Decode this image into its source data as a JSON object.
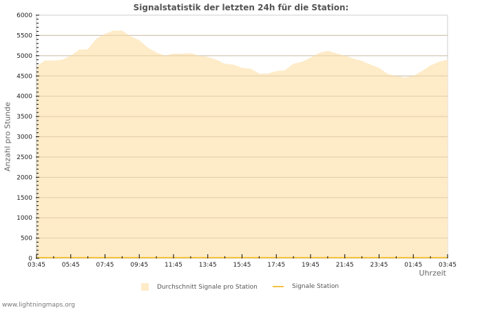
{
  "chart_data": {
    "type": "area",
    "title": "Signalstatistik der letzten 24h für die Station:",
    "xlabel": "Uhrzeit",
    "ylabel": "Anzahl pro Stunde",
    "ylim": [
      0,
      6000
    ],
    "yticks": [
      0,
      500,
      1000,
      1500,
      2000,
      2500,
      3000,
      3500,
      4000,
      4500,
      5000,
      5500,
      6000
    ],
    "xtick_labels": [
      "03:45",
      "05:45",
      "07:45",
      "09:45",
      "11:45",
      "13:45",
      "15:45",
      "17:45",
      "19:45",
      "21:45",
      "23:45",
      "01:45",
      "03:45"
    ],
    "grid": true,
    "legend_position": "bottom",
    "x": [
      "03:45",
      "04:15",
      "04:45",
      "05:15",
      "05:45",
      "06:15",
      "06:45",
      "07:15",
      "07:45",
      "08:15",
      "08:45",
      "09:15",
      "09:45",
      "10:15",
      "10:45",
      "11:15",
      "11:45",
      "12:15",
      "12:45",
      "13:15",
      "13:45",
      "14:15",
      "14:45",
      "15:15",
      "15:45",
      "16:15",
      "16:45",
      "17:15",
      "17:45",
      "18:15",
      "18:45",
      "19:15",
      "19:45",
      "20:15",
      "20:45",
      "21:15",
      "21:45",
      "22:15",
      "22:45",
      "23:15",
      "23:45",
      "00:15",
      "00:45",
      "01:15",
      "01:45",
      "02:15",
      "02:45",
      "03:15",
      "03:45"
    ],
    "series": [
      {
        "name": "Durchschnitt Signale pro Station",
        "style": "area",
        "color": "#feebc8",
        "values": [
          4740,
          4880,
          4880,
          4900,
          5000,
          5150,
          5160,
          5420,
          5540,
          5620,
          5620,
          5480,
          5380,
          5200,
          5080,
          5000,
          5050,
          5050,
          5060,
          5000,
          4970,
          4900,
          4800,
          4780,
          4700,
          4680,
          4560,
          4560,
          4620,
          4640,
          4800,
          4850,
          4950,
          5070,
          5120,
          5060,
          5000,
          4930,
          4870,
          4780,
          4700,
          4550,
          4500,
          4460,
          4500,
          4620,
          4760,
          4850,
          4900
        ]
      },
      {
        "name": "Signale Station",
        "style": "line",
        "color": "#f5c240",
        "values": [
          0,
          0,
          0,
          0,
          0,
          0,
          0,
          0,
          0,
          0,
          0,
          0,
          0,
          0,
          0,
          0,
          0,
          0,
          0,
          0,
          0,
          0,
          0,
          0,
          0,
          0,
          0,
          0,
          0,
          0,
          0,
          0,
          0,
          0,
          0,
          0,
          0,
          0,
          0,
          0,
          0,
          0,
          0,
          0,
          0,
          0,
          0,
          0,
          0
        ]
      }
    ]
  },
  "page": {
    "title": "Signalstatistik der letzten 24h für die Station:",
    "ylabel": "Anzahl pro Stunde",
    "xlabel": "Uhrzeit",
    "legend": {
      "area_label": "Durchschnitt Signale pro Station",
      "line_label": "Signale Station"
    },
    "footer": "www.lightningmaps.org"
  }
}
